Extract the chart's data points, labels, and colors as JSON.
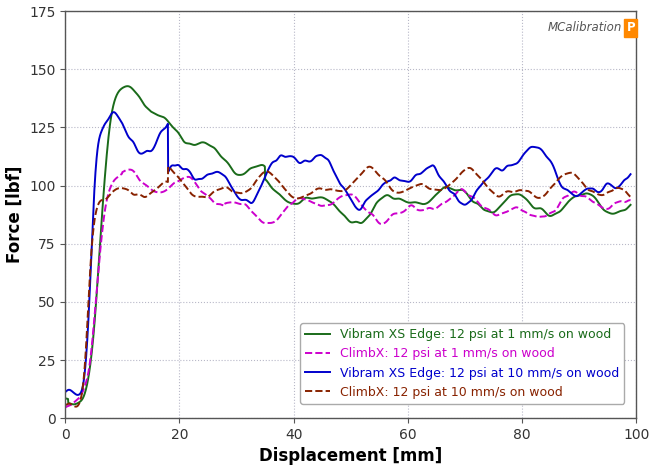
{
  "title": "",
  "xlabel": "Displacement [mm]",
  "ylabel": "Force [lbf]",
  "xlim": [
    0,
    100
  ],
  "ylim": [
    0,
    175
  ],
  "xticks": [
    0,
    20,
    40,
    60,
    80,
    100
  ],
  "yticks": [
    0,
    25,
    50,
    75,
    100,
    125,
    150,
    175
  ],
  "background_color": "#ffffff",
  "grid_color": "#b8b8c8",
  "legend": [
    {
      "label": "Vibram XS Edge: 12 psi at 1 mm/s on wood",
      "color": "#1a6b1a",
      "linestyle": "-",
      "linewidth": 1.4
    },
    {
      "label": "ClimbX: 12 psi at 1 mm/s on wood",
      "color": "#cc00cc",
      "linestyle": "--",
      "linewidth": 1.4
    },
    {
      "label": "Vibram XS Edge: 12 psi at 10 mm/s on wood",
      "color": "#0000cc",
      "linestyle": "-",
      "linewidth": 1.4
    },
    {
      "label": "ClimbX: 12 psi at 10 mm/s on wood",
      "color": "#882200",
      "linestyle": "--",
      "linewidth": 1.4
    }
  ]
}
